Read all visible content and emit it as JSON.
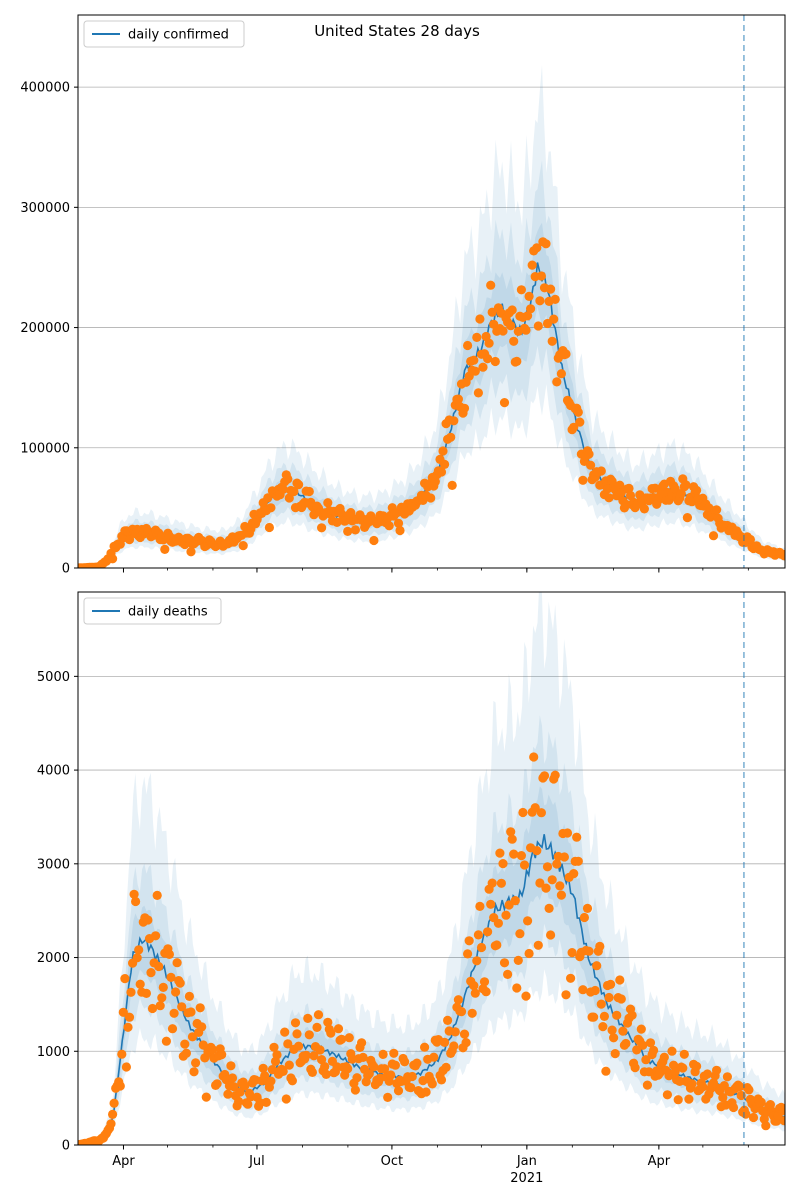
{
  "chart_data": [
    {
      "type": "line",
      "title": "United States 28 days",
      "legend": {
        "label": "daily confirmed",
        "placement": "top-left"
      },
      "xlim": [
        "2020-03-01",
        "2021-06-26"
      ],
      "ylim": [
        0,
        460000
      ],
      "yticks": [
        0,
        100000,
        200000,
        300000,
        400000
      ],
      "grid": "y",
      "forecast_start": "2021-05-29",
      "colors": {
        "line": "#1f77b4",
        "points": "#ff7f0e",
        "band": "#1f77b4",
        "vline": "#1f77b4"
      },
      "knots": [
        [
          "2020-03-01",
          0
        ],
        [
          "2020-03-15",
          800
        ],
        [
          "2020-03-22",
          8000
        ],
        [
          "2020-03-29",
          22000
        ],
        [
          "2020-04-05",
          29000
        ],
        [
          "2020-04-12",
          30000
        ],
        [
          "2020-04-25",
          28000
        ],
        [
          "2020-05-10",
          24000
        ],
        [
          "2020-05-25",
          21000
        ],
        [
          "2020-06-08",
          20000
        ],
        [
          "2020-06-20",
          26000
        ],
        [
          "2020-07-01",
          42000
        ],
        [
          "2020-07-10",
          57000
        ],
        [
          "2020-07-20",
          66000
        ],
        [
          "2020-07-28",
          63000
        ],
        [
          "2020-08-10",
          52000
        ],
        [
          "2020-08-25",
          43000
        ],
        [
          "2020-09-10",
          38000
        ],
        [
          "2020-09-25",
          40000
        ],
        [
          "2020-10-10",
          48000
        ],
        [
          "2020-10-20",
          58000
        ],
        [
          "2020-11-01",
          78000
        ],
        [
          "2020-11-10",
          115000
        ],
        [
          "2020-11-20",
          165000
        ],
        [
          "2020-11-30",
          180000
        ],
        [
          "2020-12-08",
          205000
        ],
        [
          "2020-12-15",
          215000
        ],
        [
          "2020-12-28",
          195000
        ],
        [
          "2021-01-03",
          215000
        ],
        [
          "2021-01-08",
          250000
        ],
        [
          "2021-01-15",
          235000
        ],
        [
          "2021-01-25",
          165000
        ],
        [
          "2021-02-05",
          115000
        ],
        [
          "2021-02-15",
          80000
        ],
        [
          "2021-03-01",
          66000
        ],
        [
          "2021-03-15",
          55000
        ],
        [
          "2021-04-01",
          62000
        ],
        [
          "2021-04-12",
          66000
        ],
        [
          "2021-04-25",
          58000
        ],
        [
          "2021-05-10",
          42000
        ],
        [
          "2021-05-29",
          25000
        ],
        [
          "2021-06-10",
          15000
        ],
        [
          "2021-06-26",
          10000
        ]
      ],
      "band_factors": [
        {
          "lower": 0.86,
          "upper": 1.14,
          "amp": 1.0
        },
        {
          "lower": 0.72,
          "upper": 1.3,
          "amp": 2.0
        },
        {
          "lower": 0.58,
          "upper": 1.55,
          "amp": 3.0
        }
      ],
      "points": {
        "count": 460,
        "scatter": 0.13,
        "weekly": 0.07,
        "outlier_every": 17,
        "outlier_factor": 0.45
      }
    },
    {
      "type": "line",
      "title": "",
      "legend": {
        "label": "daily deaths",
        "placement": "top-left"
      },
      "xlim": [
        "2020-03-01",
        "2021-06-26"
      ],
      "ylim": [
        0,
        5900
      ],
      "yticks": [
        0,
        1000,
        2000,
        3000,
        4000,
        5000
      ],
      "xticks": [
        {
          "date": "2020-04-01",
          "label": "Apr"
        },
        {
          "date": "2020-07-01",
          "label": "Jul"
        },
        {
          "date": "2020-10-01",
          "label": "Oct"
        },
        {
          "date": "2021-01-01",
          "label": "Jan",
          "sub": "2021"
        },
        {
          "date": "2021-04-01",
          "label": "Apr"
        }
      ],
      "grid": "y",
      "forecast_start": "2021-05-29",
      "colors": {
        "line": "#1f77b4",
        "points": "#ff7f0e",
        "band": "#1f77b4",
        "vline": "#1f77b4"
      },
      "knots": [
        [
          "2020-03-01",
          0
        ],
        [
          "2020-03-18",
          60
        ],
        [
          "2020-03-25",
          300
        ],
        [
          "2020-04-01",
          1200
        ],
        [
          "2020-04-07",
          2000
        ],
        [
          "2020-04-14",
          2200
        ],
        [
          "2020-04-20",
          2100
        ],
        [
          "2020-05-01",
          1800
        ],
        [
          "2020-05-15",
          1300
        ],
        [
          "2020-06-01",
          900
        ],
        [
          "2020-06-15",
          650
        ],
        [
          "2020-06-25",
          560
        ],
        [
          "2020-07-05",
          650
        ],
        [
          "2020-07-15",
          850
        ],
        [
          "2020-07-28",
          1050
        ],
        [
          "2020-08-10",
          1050
        ],
        [
          "2020-08-25",
          950
        ],
        [
          "2020-09-10",
          820
        ],
        [
          "2020-09-25",
          750
        ],
        [
          "2020-10-10",
          720
        ],
        [
          "2020-10-20",
          760
        ],
        [
          "2020-11-01",
          900
        ],
        [
          "2020-11-10",
          1150
        ],
        [
          "2020-11-20",
          1600
        ],
        [
          "2020-12-01",
          2150
        ],
        [
          "2020-12-10",
          2500
        ],
        [
          "2020-12-20",
          2600
        ],
        [
          "2020-12-28",
          2650
        ],
        [
          "2021-01-05",
          3100
        ],
        [
          "2021-01-12",
          3250
        ],
        [
          "2021-01-20",
          3100
        ],
        [
          "2021-02-01",
          2700
        ],
        [
          "2021-02-12",
          2000
        ],
        [
          "2021-02-25",
          1500
        ],
        [
          "2021-03-10",
          1200
        ],
        [
          "2021-03-25",
          900
        ],
        [
          "2021-04-10",
          780
        ],
        [
          "2021-04-25",
          700
        ],
        [
          "2021-05-10",
          650
        ],
        [
          "2021-05-29",
          500
        ],
        [
          "2021-06-10",
          380
        ],
        [
          "2021-06-26",
          300
        ]
      ],
      "band_factors": [
        {
          "lower": 0.84,
          "upper": 1.16,
          "amp": 1.0
        },
        {
          "lower": 0.68,
          "upper": 1.35,
          "amp": 2.0
        },
        {
          "lower": 0.52,
          "upper": 1.75,
          "amp": 3.0
        }
      ],
      "points": {
        "count": 460,
        "scatter": 0.15,
        "weekly": 0.22,
        "outlier_every": 13,
        "outlier_factor": 0.5
      }
    }
  ]
}
